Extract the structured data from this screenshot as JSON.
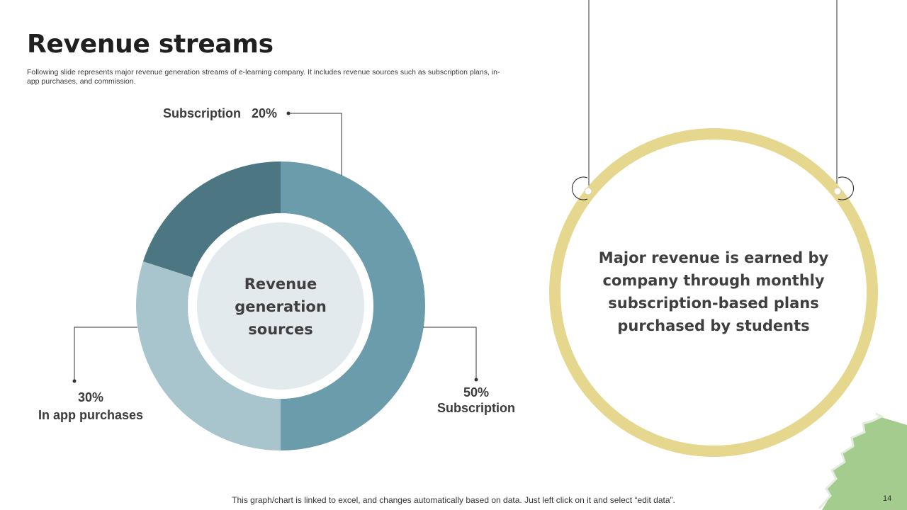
{
  "slide": {
    "title": "Revenue streams",
    "subtitle": "Following slide represents major revenue generation streams of e-learning company. It includes revenue sources such as subscription plans, in-app purchases, and commission.",
    "footer": "This graph/chart is linked to excel, and changes automatically based on data. Just left click on it and select “edit data”.",
    "page_number": "14"
  },
  "chart_data": {
    "type": "pie",
    "donut": true,
    "center_label": "Revenue generation sources",
    "slices": [
      {
        "label": "Subscription",
        "value": 50,
        "value_label": "50%",
        "color": "#6b9cab"
      },
      {
        "label": "In app purchases",
        "value": 30,
        "value_label": "30%",
        "color": "#a8c4cd"
      },
      {
        "label": "Subscription",
        "value": 20,
        "value_label": "20%",
        "color": "#4b7682"
      }
    ]
  },
  "note": {
    "text": "Major revenue is earned by company through monthly subscription-based plans purchased by students",
    "ring_color": "#e6d78f"
  },
  "colors": {
    "center_fill": "#e2eaed",
    "decor_green": "#a3cc8e"
  }
}
